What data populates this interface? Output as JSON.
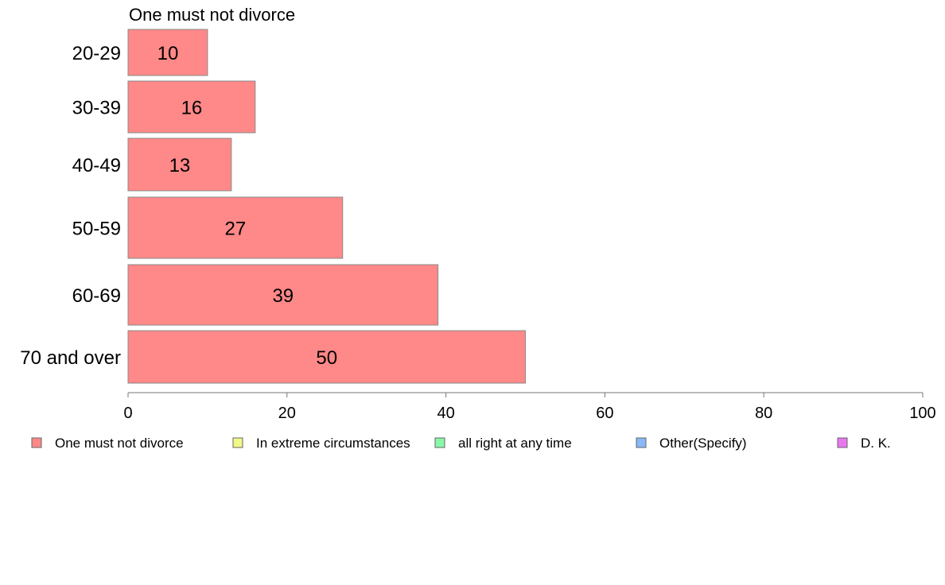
{
  "chart_data": {
    "type": "bar",
    "orientation": "horizontal",
    "title": "One must not divorce",
    "categories": [
      "20-29",
      "30-39",
      "40-49",
      "50-59",
      "60-69",
      "70 and over"
    ],
    "series": [
      {
        "name": "One must not divorce",
        "color": "#ff8888",
        "values": [
          10,
          16,
          13,
          27,
          39,
          50
        ]
      }
    ],
    "xlim": [
      0,
      100
    ],
    "xticks": [
      "0",
      "20",
      "40",
      "60",
      "80",
      "100"
    ],
    "legend_position": "bottom",
    "legend": [
      {
        "label": "One must not divorce",
        "color": "#ff8888"
      },
      {
        "label": "In extreme circumstances",
        "color": "#f0f888"
      },
      {
        "label": "all right at any time",
        "color": "#88f8a8"
      },
      {
        "label": "Other(Specify)",
        "color": "#88b8f8"
      },
      {
        "label": "D. K.",
        "color": "#e878f0"
      }
    ]
  }
}
